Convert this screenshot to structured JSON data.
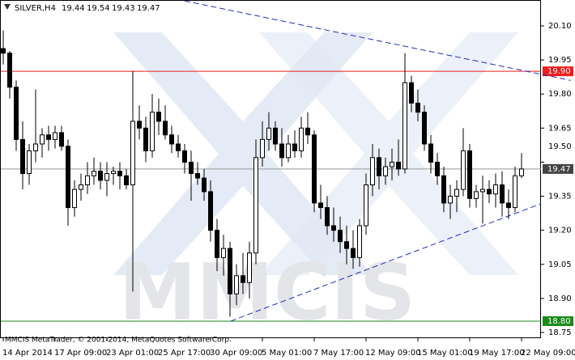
{
  "chart_data": {
    "type": "candlestick",
    "symbol": "SILVER,H4",
    "header_ohlc": [
      19.44,
      19.54,
      19.43,
      19.47
    ],
    "footer": "MMCIS MetaTrader, © 2001-2014, MetaQuotes Software Corp.",
    "watermark": "MMCIS",
    "bull_color": "#ffffff",
    "bear_color": "#000000",
    "outline_color": "#000000",
    "categories": [
      "14 Apr 2014",
      null,
      null,
      null,
      null,
      null,
      null,
      null,
      "17 Apr 09:00",
      null,
      null,
      null,
      null,
      null,
      null,
      null,
      "23 Apr 01:00",
      null,
      null,
      null,
      null,
      null,
      null,
      null,
      "25 Apr 17:00",
      null,
      null,
      null,
      null,
      null,
      null,
      null,
      "30 Apr 09:00",
      null,
      null,
      null,
      null,
      null,
      null,
      null,
      "5 May 01:00",
      null,
      null,
      null,
      null,
      null,
      null,
      null,
      "7 May 17:00",
      null,
      null,
      null,
      null,
      null,
      null,
      null,
      "12 May 09:00",
      null,
      null,
      null,
      null,
      null,
      null,
      null,
      "15 May 01:00",
      null,
      null,
      null,
      null,
      null,
      null,
      null,
      "19 May 17:00",
      null,
      null,
      null,
      null,
      null,
      null,
      null,
      "22 May 09:00"
    ],
    "open": [
      20.0,
      19.98,
      19.83,
      19.6,
      19.45,
      19.55,
      19.58,
      19.62,
      19.6,
      19.63,
      19.57,
      19.3,
      19.38,
      19.4,
      19.44,
      19.46,
      19.42,
      19.45,
      19.46,
      19.44,
      19.4,
      19.68,
      19.65,
      19.55,
      19.72,
      19.68,
      19.62,
      19.58,
      19.55,
      19.5,
      19.45,
      19.43,
      19.37,
      19.2,
      19.08,
      19.12,
      18.92,
      19.0,
      18.97,
      19.1,
      19.52,
      19.6,
      19.65,
      19.58,
      19.52,
      19.58,
      19.55,
      19.65,
      19.62,
      19.32,
      19.3,
      19.22,
      19.2,
      19.15,
      19.12,
      19.08,
      19.22,
      19.4,
      19.52,
      19.44,
      19.48,
      19.5,
      19.47,
      19.85,
      19.76,
      19.72,
      19.58,
      19.5,
      19.44,
      19.32,
      19.35,
      19.38,
      19.55,
      19.34,
      19.37,
      19.38,
      19.36,
      19.4,
      19.32,
      19.3,
      19.44
    ],
    "high": [
      20.08,
      19.99,
      19.86,
      19.68,
      19.58,
      19.82,
      19.65,
      19.66,
      19.66,
      19.66,
      19.6,
      19.42,
      19.45,
      19.5,
      19.52,
      19.5,
      19.5,
      19.48,
      19.5,
      19.47,
      19.9,
      19.75,
      19.7,
      19.8,
      19.78,
      19.75,
      19.66,
      19.62,
      19.58,
      19.55,
      19.5,
      19.47,
      19.42,
      19.25,
      19.18,
      19.15,
      19.05,
      19.1,
      19.15,
      19.6,
      19.68,
      19.72,
      19.68,
      19.65,
      19.62,
      19.64,
      19.7,
      19.72,
      19.64,
      19.4,
      19.35,
      19.3,
      19.26,
      19.22,
      19.2,
      19.25,
      19.45,
      19.58,
      19.56,
      19.52,
      19.56,
      19.6,
      19.98,
      19.88,
      19.82,
      19.75,
      19.62,
      19.54,
      19.48,
      19.4,
      19.42,
      19.65,
      19.58,
      19.4,
      19.44,
      19.42,
      19.45,
      19.46,
      19.38,
      19.48,
      19.54
    ],
    "low": [
      19.93,
      19.78,
      19.55,
      19.38,
      19.4,
      19.5,
      19.52,
      19.55,
      19.56,
      19.55,
      19.22,
      19.26,
      19.33,
      19.36,
      19.4,
      19.38,
      19.35,
      19.4,
      19.38,
      19.38,
      18.93,
      19.6,
      19.5,
      19.52,
      19.62,
      19.6,
      19.54,
      19.52,
      19.45,
      19.33,
      19.4,
      19.33,
      19.15,
      19.02,
      19.0,
      18.82,
      18.87,
      18.92,
      18.9,
      19.05,
      19.48,
      19.55,
      19.55,
      19.48,
      19.5,
      19.52,
      19.52,
      19.58,
      19.28,
      19.25,
      19.18,
      19.15,
      19.1,
      19.05,
      19.03,
      19.04,
      19.18,
      19.35,
      19.38,
      19.4,
      19.42,
      19.44,
      19.45,
      19.72,
      19.68,
      19.55,
      19.45,
      19.4,
      19.28,
      19.25,
      19.28,
      19.35,
      19.3,
      19.3,
      19.23,
      19.32,
      19.3,
      19.26,
      19.25,
      19.28,
      19.43
    ],
    "close": [
      19.98,
      19.83,
      19.6,
      19.45,
      19.55,
      19.58,
      19.62,
      19.6,
      19.63,
      19.57,
      19.3,
      19.38,
      19.4,
      19.44,
      19.46,
      19.42,
      19.45,
      19.46,
      19.44,
      19.4,
      19.68,
      19.65,
      19.55,
      19.72,
      19.68,
      19.62,
      19.58,
      19.55,
      19.5,
      19.45,
      19.43,
      19.37,
      19.2,
      19.08,
      19.12,
      18.92,
      19.0,
      18.97,
      19.1,
      19.52,
      19.6,
      19.65,
      19.58,
      19.52,
      19.58,
      19.55,
      19.65,
      19.62,
      19.32,
      19.3,
      19.22,
      19.2,
      19.15,
      19.12,
      19.08,
      19.22,
      19.4,
      19.52,
      19.44,
      19.48,
      19.5,
      19.47,
      19.85,
      19.76,
      19.72,
      19.58,
      19.5,
      19.44,
      19.32,
      19.35,
      19.38,
      19.55,
      19.34,
      19.37,
      19.38,
      19.36,
      19.4,
      19.32,
      19.3,
      19.44,
      19.47
    ],
    "ylim": [
      18.725,
      20.214
    ],
    "yticks": [
      {
        "value": 20.1,
        "label": "20.10"
      },
      {
        "value": 19.95,
        "label": "19.95"
      },
      {
        "value": 19.8,
        "label": "19.80"
      },
      {
        "value": 19.65,
        "label": "19.65"
      },
      {
        "value": 19.5,
        "label": "19.50"
      },
      {
        "value": 19.35,
        "label": "19.35"
      },
      {
        "value": 19.2,
        "label": "19.20"
      },
      {
        "value": 19.05,
        "label": "19.05"
      },
      {
        "value": 18.9,
        "label": "18.90"
      },
      {
        "value": 18.75,
        "label": "18.75"
      }
    ],
    "levels": [
      {
        "value": 19.9,
        "label": "19.90",
        "color": "#ee1c1c"
      },
      {
        "value": 18.8,
        "label": "18.80",
        "color": "#1a8a1a"
      },
      {
        "value": 19.47,
        "label": "19.47",
        "color": "#999999"
      }
    ],
    "trendlines": [
      {
        "x": [
          28,
          87.6
        ],
        "y": [
          20.21,
          19.86
        ],
        "color": "#1f2fbf"
      },
      {
        "x": [
          35.1,
          83
        ],
        "y": [
          18.8,
          19.317
        ],
        "color": "#1f2fbf"
      }
    ]
  }
}
